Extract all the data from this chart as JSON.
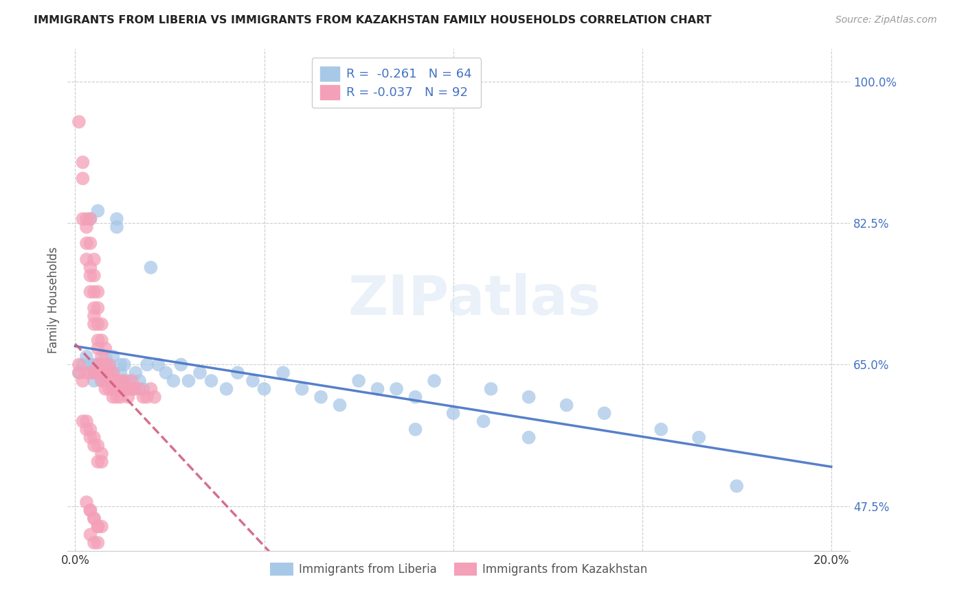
{
  "title": "IMMIGRANTS FROM LIBERIA VS IMMIGRANTS FROM KAZAKHSTAN FAMILY HOUSEHOLDS CORRELATION CHART",
  "source": "Source: ZipAtlas.com",
  "ylabel": "Family Households",
  "ylim": [
    0.42,
    1.04
  ],
  "xlim": [
    -0.002,
    0.205
  ],
  "series": [
    {
      "name": "Immigrants from Liberia",
      "R": -0.261,
      "N": 64,
      "color": "#a8c8e8",
      "line_color": "#4472C4",
      "line_style": "solid",
      "x": [
        0.001,
        0.002,
        0.003,
        0.004,
        0.004,
        0.005,
        0.005,
        0.005,
        0.006,
        0.006,
        0.006,
        0.007,
        0.007,
        0.008,
        0.008,
        0.008,
        0.009,
        0.009,
        0.01,
        0.01,
        0.011,
        0.011,
        0.012,
        0.012,
        0.013,
        0.013,
        0.014,
        0.015,
        0.016,
        0.017,
        0.018,
        0.019,
        0.02,
        0.022,
        0.024,
        0.026,
        0.028,
        0.03,
        0.033,
        0.036,
        0.04,
        0.043,
        0.047,
        0.05,
        0.055,
        0.06,
        0.065,
        0.07,
        0.075,
        0.08,
        0.085,
        0.09,
        0.095,
        0.1,
        0.11,
        0.12,
        0.13,
        0.14,
        0.155,
        0.165,
        0.09,
        0.108,
        0.12,
        0.175
      ],
      "y": [
        0.64,
        0.65,
        0.66,
        0.65,
        0.83,
        0.65,
        0.64,
        0.63,
        0.65,
        0.64,
        0.84,
        0.65,
        0.63,
        0.65,
        0.66,
        0.64,
        0.65,
        0.64,
        0.66,
        0.64,
        0.83,
        0.82,
        0.65,
        0.64,
        0.65,
        0.63,
        0.63,
        0.62,
        0.64,
        0.63,
        0.62,
        0.65,
        0.77,
        0.65,
        0.64,
        0.63,
        0.65,
        0.63,
        0.64,
        0.63,
        0.62,
        0.64,
        0.63,
        0.62,
        0.64,
        0.62,
        0.61,
        0.6,
        0.63,
        0.62,
        0.62,
        0.61,
        0.63,
        0.59,
        0.62,
        0.61,
        0.6,
        0.59,
        0.57,
        0.56,
        0.57,
        0.58,
        0.56,
        0.5
      ]
    },
    {
      "name": "Immigrants from Kazakhstan",
      "R": -0.037,
      "N": 92,
      "color": "#f4a0b8",
      "line_color": "#d06080",
      "line_style": "dashed",
      "x": [
        0.001,
        0.001,
        0.001,
        0.002,
        0.002,
        0.002,
        0.002,
        0.003,
        0.003,
        0.003,
        0.003,
        0.003,
        0.004,
        0.004,
        0.004,
        0.004,
        0.004,
        0.004,
        0.005,
        0.005,
        0.005,
        0.005,
        0.005,
        0.005,
        0.005,
        0.006,
        0.006,
        0.006,
        0.006,
        0.006,
        0.006,
        0.006,
        0.007,
        0.007,
        0.007,
        0.007,
        0.007,
        0.007,
        0.008,
        0.008,
        0.008,
        0.008,
        0.008,
        0.008,
        0.009,
        0.009,
        0.009,
        0.009,
        0.01,
        0.01,
        0.01,
        0.01,
        0.011,
        0.011,
        0.011,
        0.012,
        0.012,
        0.012,
        0.013,
        0.013,
        0.014,
        0.014,
        0.015,
        0.015,
        0.016,
        0.017,
        0.018,
        0.019,
        0.02,
        0.021,
        0.002,
        0.003,
        0.004,
        0.005,
        0.006,
        0.007,
        0.003,
        0.004,
        0.005,
        0.006,
        0.007,
        0.004,
        0.005,
        0.006,
        0.003,
        0.004,
        0.005,
        0.006,
        0.007,
        0.004,
        0.005,
        0.006
      ],
      "y": [
        0.95,
        0.65,
        0.64,
        0.9,
        0.88,
        0.83,
        0.63,
        0.83,
        0.82,
        0.8,
        0.78,
        0.64,
        0.83,
        0.8,
        0.77,
        0.76,
        0.74,
        0.64,
        0.78,
        0.76,
        0.74,
        0.72,
        0.71,
        0.7,
        0.64,
        0.74,
        0.72,
        0.7,
        0.68,
        0.67,
        0.65,
        0.64,
        0.7,
        0.68,
        0.66,
        0.65,
        0.64,
        0.63,
        0.67,
        0.65,
        0.64,
        0.63,
        0.62,
        0.64,
        0.65,
        0.64,
        0.63,
        0.62,
        0.64,
        0.63,
        0.62,
        0.61,
        0.63,
        0.62,
        0.61,
        0.63,
        0.62,
        0.61,
        0.63,
        0.62,
        0.62,
        0.61,
        0.63,
        0.62,
        0.62,
        0.62,
        0.61,
        0.61,
        0.62,
        0.61,
        0.58,
        0.57,
        0.56,
        0.55,
        0.53,
        0.53,
        0.48,
        0.47,
        0.46,
        0.45,
        0.45,
        0.44,
        0.43,
        0.43,
        0.58,
        0.57,
        0.56,
        0.55,
        0.54,
        0.47,
        0.46,
        0.45
      ]
    }
  ],
  "watermark_text": "ZIPatlas",
  "legend_color": "#4472C4",
  "ytick_positions": [
    0.475,
    0.65,
    0.825,
    1.0
  ],
  "ytick_labels": [
    "47.5%",
    "65.0%",
    "82.5%",
    "100.0%"
  ],
  "xtick_positions": [
    0.0,
    0.05,
    0.1,
    0.15,
    0.2
  ],
  "xtick_labels": [
    "0.0%",
    "",
    "",
    "",
    "20.0%"
  ]
}
